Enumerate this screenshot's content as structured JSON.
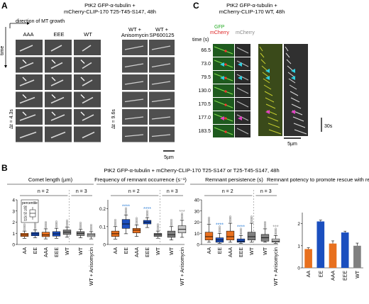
{
  "panelA": {
    "letter": "A",
    "title_line1": "PtK2 GFP-α-tubulin +",
    "title_line2": "mCherry-CLIP-170 T25-T45-S147, 48h",
    "direction_label": "direction of MT growth",
    "time_label": "time",
    "columns_left": [
      "AAA",
      "EEE",
      "WT"
    ],
    "columns_right_line1": [
      "WT +",
      "WT +"
    ],
    "columns_right_line2": [
      "Anisomycin",
      "SP600125"
    ],
    "dt_left": "Δt = 4.3s",
    "dt_right": "Δt = 9.6s",
    "scale": "5µm"
  },
  "panelC": {
    "letter": "C",
    "title_line1": "PtK2 GFP-α-tubulin +",
    "title_line2": "mCherry-CLIP-170 WT, 48h",
    "legend_gfp": "GFP",
    "legend_mcherry": "mCherry",
    "legend_mcherry2": "mCherry",
    "time_header": "time (s)",
    "times": [
      "66.5",
      "73.0",
      "79.5",
      "130.0",
      "170.5",
      "177.0",
      "183.5"
    ],
    "scale_time": "30s",
    "scale_len": "5µm"
  },
  "panelB": {
    "letter": "B",
    "title": "PtK2 GFP-α-tubulin + mCherry-CLIP-170 T25-S147 or T25-T45-S147, 48h",
    "sub_titles": [
      "Comet length (µm)",
      "Frequency of remnant occurrence (s⁻¹)",
      "Remnant persistence (s)",
      "Remnant potency to promote rescue with regrowth"
    ],
    "n2": "n = 2",
    "n3": "n = 3",
    "inset_label": "percentile",
    "inset_ticks": [
      "90",
      "75",
      "50",
      "25",
      "10"
    ],
    "cat_main": [
      "AA",
      "EE",
      "AAA",
      "EEE",
      "WT"
    ],
    "cat_aniso": [
      "WT",
      "WT + Anisomycin"
    ],
    "cat_bar": [
      "AA",
      "EE",
      "AAA",
      "EEE",
      "WT"
    ],
    "yticks_comet": [
      "4",
      "3",
      "2",
      "1",
      "0"
    ],
    "yticks_freq": [
      "0.2",
      "0.1",
      "0"
    ],
    "yticks_persist": [
      "40",
      "30",
      "20",
      "10",
      "0"
    ],
    "yticks_potency": [
      "2",
      "1",
      "0"
    ],
    "stars": "****",
    "stars3": "***",
    "colors": {
      "orange": "#e8701e",
      "blue": "#1b4fbf",
      "gray": "#808080",
      "lightgray": "#c8c8c8",
      "star": "#2f7fd6"
    }
  },
  "chart_data": [
    {
      "type": "box",
      "title": "Comet length (µm)",
      "categories": [
        "AA",
        "EE",
        "AAA",
        "EEE",
        "WT",
        "WT",
        "WT + Anisomycin"
      ],
      "ylim": [
        0,
        4
      ],
      "boxes": [
        {
          "p10": 0.55,
          "q1": 0.72,
          "median": 0.85,
          "q3": 1.0,
          "p90": 1.2
        },
        {
          "p10": 0.6,
          "q1": 0.78,
          "median": 0.95,
          "q3": 1.08,
          "p90": 1.3
        },
        {
          "p10": 0.5,
          "q1": 0.7,
          "median": 0.85,
          "q3": 1.1,
          "p90": 1.4
        },
        {
          "p10": 0.55,
          "q1": 0.75,
          "median": 0.95,
          "q3": 1.15,
          "p90": 1.45
        },
        {
          "p10": 0.65,
          "q1": 0.9,
          "median": 1.1,
          "q3": 1.3,
          "p90": 1.55
        },
        {
          "p10": 0.6,
          "q1": 0.8,
          "median": 1.0,
          "q3": 1.15,
          "p90": 1.35
        },
        {
          "p10": 0.5,
          "q1": 0.7,
          "median": 0.85,
          "q3": 0.98,
          "p90": 1.15
        }
      ]
    },
    {
      "type": "box",
      "title": "Frequency of remnant occurrence (s⁻¹)",
      "categories": [
        "AA",
        "EE",
        "AAA",
        "EEE",
        "WT",
        "WT",
        "WT + Anisomycin"
      ],
      "ylim": [
        0,
        0.25
      ],
      "boxes": [
        {
          "p10": 0.03,
          "q1": 0.045,
          "median": 0.06,
          "q3": 0.075,
          "p90": 0.1
        },
        {
          "p10": 0.06,
          "q1": 0.09,
          "median": 0.115,
          "q3": 0.14,
          "p90": 0.165
        },
        {
          "p10": 0.045,
          "q1": 0.065,
          "median": 0.08,
          "q3": 0.09,
          "p90": 0.11
        },
        {
          "p10": 0.095,
          "q1": 0.115,
          "median": 0.125,
          "q3": 0.135,
          "p90": 0.15
        },
        {
          "p10": 0.035,
          "q1": 0.045,
          "median": 0.055,
          "q3": 0.062,
          "p90": 0.075
        },
        {
          "p10": 0.025,
          "q1": 0.04,
          "median": 0.055,
          "q3": 0.075,
          "p90": 0.1
        },
        {
          "p10": 0.04,
          "q1": 0.065,
          "median": 0.085,
          "q3": 0.105,
          "p90": 0.135
        }
      ]
    },
    {
      "type": "box",
      "title": "Remnant persistence (s)",
      "categories": [
        "AA",
        "EE",
        "AAA",
        "EEE",
        "WT",
        "WT",
        "WT + Anisomycin"
      ],
      "ylim": [
        0,
        40
      ],
      "boxes": [
        {
          "p10": 2,
          "q1": 4,
          "median": 7,
          "q3": 11,
          "p90": 18
        },
        {
          "p10": 1,
          "q1": 2,
          "median": 4,
          "q3": 6,
          "p90": 10
        },
        {
          "p10": 2,
          "q1": 4,
          "median": 7,
          "q3": 12,
          "p90": 19
        },
        {
          "p10": 1,
          "q1": 2,
          "median": 3,
          "q3": 5,
          "p90": 8
        },
        {
          "p10": 2,
          "q1": 4,
          "median": 7,
          "q3": 11,
          "p90": 19
        },
        {
          "p10": 2,
          "q1": 3,
          "median": 6,
          "q3": 9,
          "p90": 14
        },
        {
          "p10": 1,
          "q1": 2,
          "median": 3,
          "q3": 5,
          "p90": 8
        }
      ]
    },
    {
      "type": "bar",
      "title": "Remnant potency to promote rescue with regrowth",
      "categories": [
        "AA",
        "EE",
        "AAA",
        "EEE",
        "WT"
      ],
      "values": [
        0.85,
        2.1,
        1.1,
        1.6,
        1.0
      ],
      "errors": [
        0.06,
        0.06,
        0.12,
        0.06,
        0.12
      ],
      "ylim": [
        0,
        2.5
      ]
    }
  ]
}
